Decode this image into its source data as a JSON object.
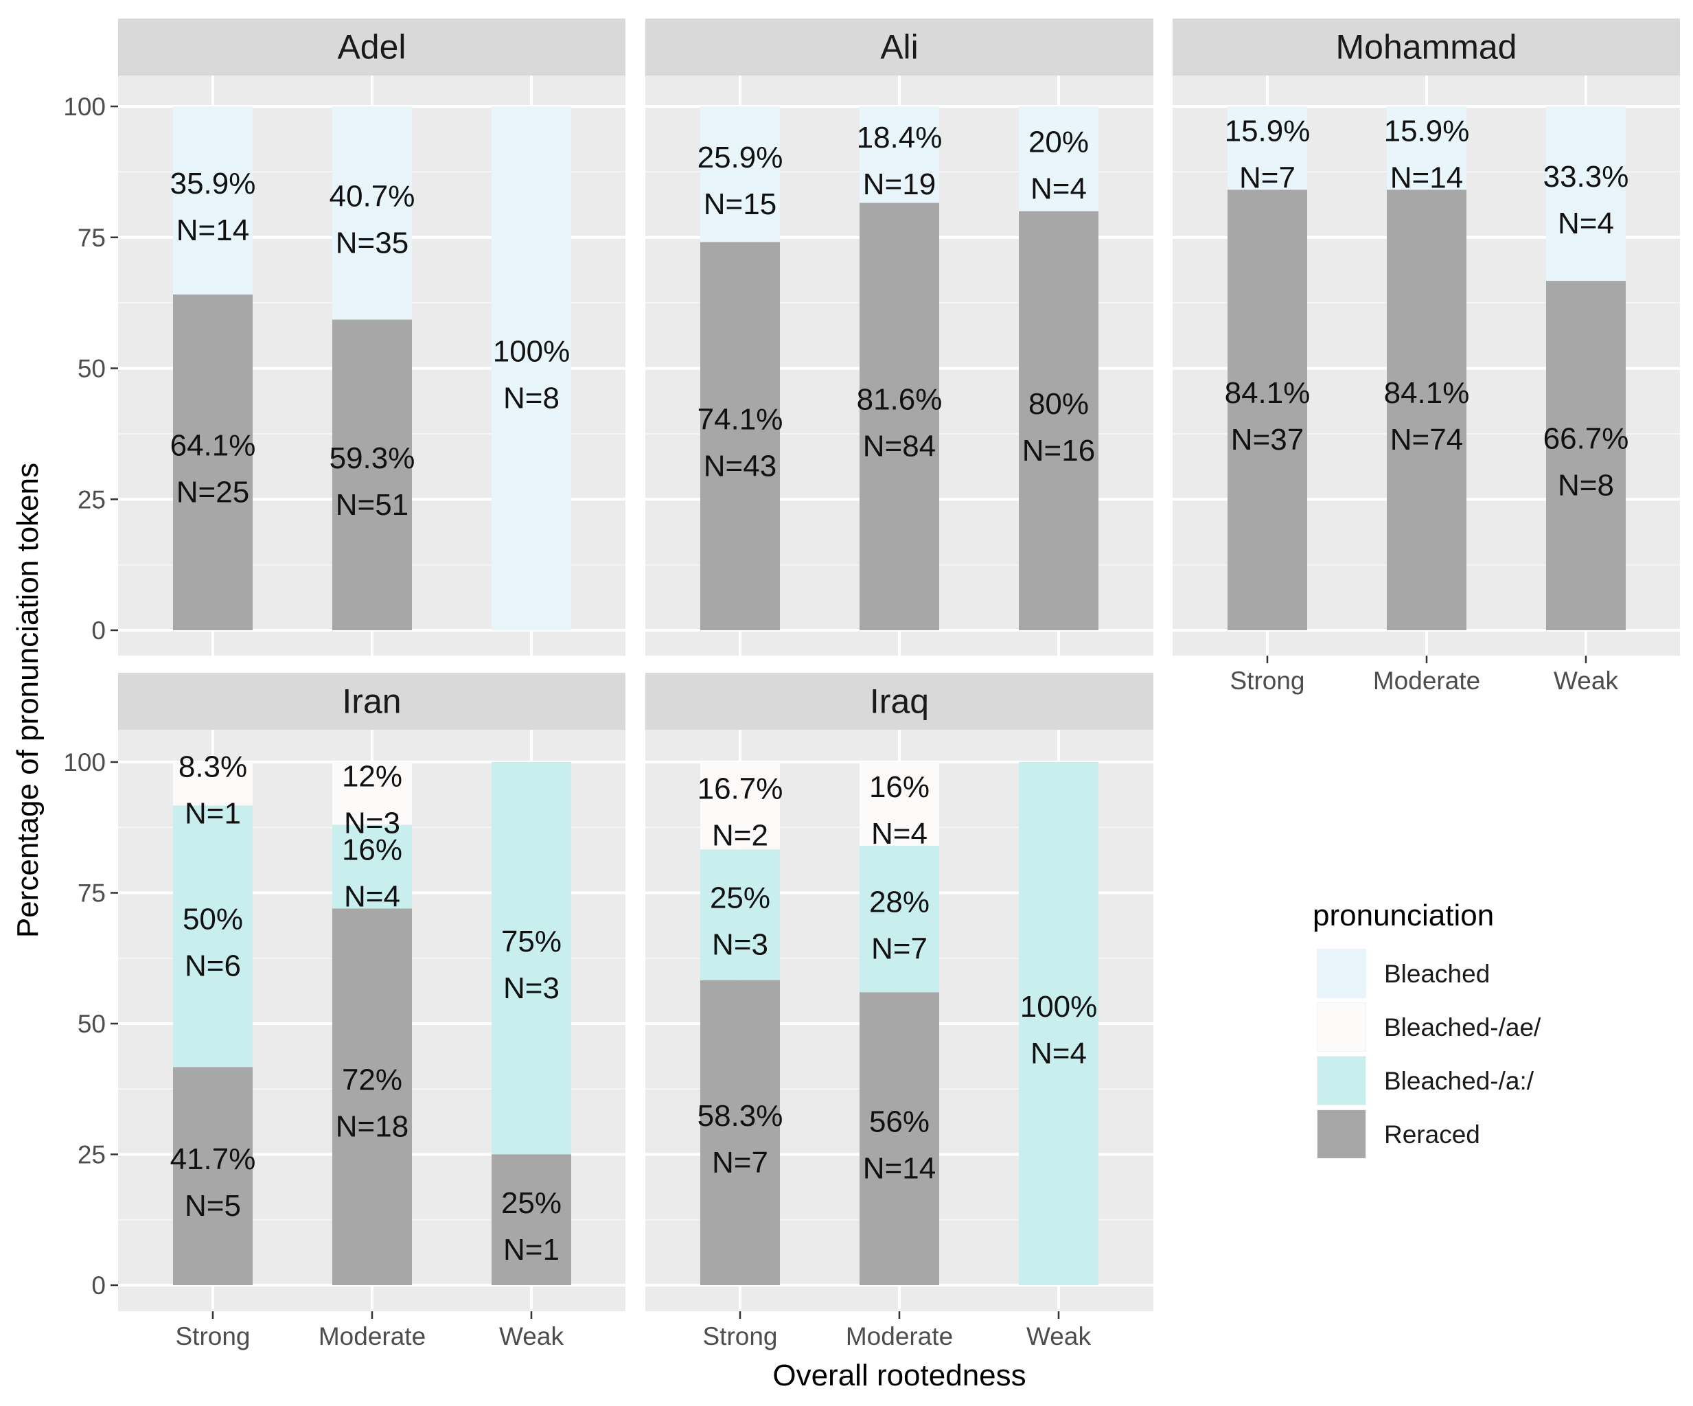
{
  "chart_data": {
    "type": "bar",
    "stacked": true,
    "xlabel": "Overall rootedness",
    "ylabel": "Percentage of pronunciation tokens",
    "ylim": [
      0,
      100
    ],
    "y_ticks": [
      "0",
      "25",
      "50",
      "75",
      "100"
    ],
    "categories": [
      "Strong",
      "Moderate",
      "Weak"
    ],
    "legend": {
      "title": "pronunciation",
      "position": "right",
      "entries": [
        {
          "name": "Bleached",
          "color": "#e8f6fc"
        },
        {
          "name": "Bleached-/ae/",
          "color": "#fdfafa"
        },
        {
          "name": "Bleached-/a:/",
          "color": "#c8eeee"
        },
        {
          "name": "Reraced",
          "color": "#a7a7a7"
        }
      ]
    },
    "grid": true,
    "panels": [
      {
        "title": "Adel",
        "bars": [
          {
            "category": "Strong",
            "segments": [
              {
                "series": "Reraced",
                "value": 64.1,
                "pct": "64.1%",
                "n": "N=25"
              },
              {
                "series": "Bleached",
                "value": 35.9,
                "pct": "35.9%",
                "n": "N=14"
              }
            ]
          },
          {
            "category": "Moderate",
            "segments": [
              {
                "series": "Reraced",
                "value": 59.3,
                "pct": "59.3%",
                "n": "N=51"
              },
              {
                "series": "Bleached",
                "value": 40.7,
                "pct": "40.7%",
                "n": "N=35"
              }
            ]
          },
          {
            "category": "Weak",
            "segments": [
              {
                "series": "Bleached",
                "value": 100,
                "pct": "100%",
                "n": "N=8"
              }
            ]
          }
        ]
      },
      {
        "title": "Ali",
        "bars": [
          {
            "category": "Strong",
            "segments": [
              {
                "series": "Reraced",
                "value": 74.1,
                "pct": "74.1%",
                "n": "N=43"
              },
              {
                "series": "Bleached",
                "value": 25.9,
                "pct": "25.9%",
                "n": "N=15"
              }
            ]
          },
          {
            "category": "Moderate",
            "segments": [
              {
                "series": "Reraced",
                "value": 81.6,
                "pct": "81.6%",
                "n": "N=84"
              },
              {
                "series": "Bleached",
                "value": 18.4,
                "pct": "18.4%",
                "n": "N=19"
              }
            ]
          },
          {
            "category": "Weak",
            "segments": [
              {
                "series": "Reraced",
                "value": 80,
                "pct": "80%",
                "n": "N=16"
              },
              {
                "series": "Bleached",
                "value": 20,
                "pct": "20%",
                "n": "N=4"
              }
            ]
          }
        ]
      },
      {
        "title": "Mohammad",
        "bars": [
          {
            "category": "Strong",
            "segments": [
              {
                "series": "Reraced",
                "value": 84.1,
                "pct": "84.1%",
                "n": "N=37"
              },
              {
                "series": "Bleached",
                "value": 15.9,
                "pct": "15.9%",
                "n": "N=7"
              }
            ]
          },
          {
            "category": "Moderate",
            "segments": [
              {
                "series": "Reraced",
                "value": 84.1,
                "pct": "84.1%",
                "n": "N=74"
              },
              {
                "series": "Bleached",
                "value": 15.9,
                "pct": "15.9%",
                "n": "N=14"
              }
            ]
          },
          {
            "category": "Weak",
            "segments": [
              {
                "series": "Reraced",
                "value": 66.7,
                "pct": "66.7%",
                "n": "N=8"
              },
              {
                "series": "Bleached",
                "value": 33.3,
                "pct": "33.3%",
                "n": "N=4"
              }
            ]
          }
        ]
      },
      {
        "title": "Iran",
        "bars": [
          {
            "category": "Strong",
            "segments": [
              {
                "series": "Reraced",
                "value": 41.7,
                "pct": "41.7%",
                "n": "N=5"
              },
              {
                "series": "Bleached-/a:/",
                "value": 50,
                "pct": "50%",
                "n": "N=6"
              },
              {
                "series": "Bleached-/ae/",
                "value": 8.3,
                "pct": "8.3%",
                "n": "N=1"
              }
            ]
          },
          {
            "category": "Moderate",
            "segments": [
              {
                "series": "Reraced",
                "value": 72,
                "pct": "72%",
                "n": "N=18"
              },
              {
                "series": "Bleached-/a:/",
                "value": 16,
                "pct": "16%",
                "n": "N=4"
              },
              {
                "series": "Bleached-/ae/",
                "value": 12,
                "pct": "12%",
                "n": "N=3"
              }
            ]
          },
          {
            "category": "Weak",
            "segments": [
              {
                "series": "Reraced",
                "value": 25,
                "pct": "25%",
                "n": "N=1"
              },
              {
                "series": "Bleached-/a:/",
                "value": 75,
                "pct": "75%",
                "n": "N=3"
              }
            ]
          }
        ]
      },
      {
        "title": "Iraq",
        "bars": [
          {
            "category": "Strong",
            "segments": [
              {
                "series": "Reraced",
                "value": 58.3,
                "pct": "58.3%",
                "n": "N=7"
              },
              {
                "series": "Bleached-/a:/",
                "value": 25,
                "pct": "25%",
                "n": "N=3"
              },
              {
                "series": "Bleached-/ae/",
                "value": 16.7,
                "pct": "16.7%",
                "n": "N=2"
              }
            ]
          },
          {
            "category": "Moderate",
            "segments": [
              {
                "series": "Reraced",
                "value": 56,
                "pct": "56%",
                "n": "N=14"
              },
              {
                "series": "Bleached-/a:/",
                "value": 28,
                "pct": "28%",
                "n": "N=7"
              },
              {
                "series": "Bleached-/ae/",
                "value": 16,
                "pct": "16%",
                "n": "N=4"
              }
            ]
          },
          {
            "category": "Weak",
            "segments": [
              {
                "series": "Bleached-/a:/",
                "value": 100,
                "pct": "100%",
                "n": "N=4"
              }
            ]
          }
        ]
      }
    ]
  }
}
